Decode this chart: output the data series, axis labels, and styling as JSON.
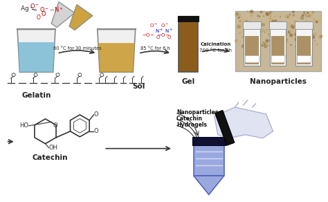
{
  "bg_color": "#ffffff",
  "arrow_color": "#333333",
  "text_color": "#222222",
  "red_color": "#cc0000",
  "blue_color": "#0000cc",
  "beaker1_liquid": "#7bbcd5",
  "beaker2_liquid": "#c8982a",
  "vial_liquid": "#8B5C1A",
  "vial_cap": "#111111",
  "tube_color": "#9aa8e0",
  "tube_cap": "#111133",
  "photo_bg": "#b8a888",
  "photo_bottle_body": "#6a5230",
  "photo_bottle_cap": "#e8e8e8",
  "photo_bg2": "#d8cca8",
  "labels": {
    "gelatin": "Gelatin",
    "sol": "Sol",
    "gel": "Gel",
    "nanoparticles": "Nanoparticles",
    "catechin": "Catechin",
    "arrow1": "60 °C for 30 minutes",
    "arrow2": "85 °C for 6 h",
    "arrow3_line1": "Calcination",
    "arrow3_line2": "700 °C for 2h",
    "tube_label1": "Nanoparticles",
    "tube_label2": "Catechin",
    "tube_label3": "Hydrogels"
  }
}
